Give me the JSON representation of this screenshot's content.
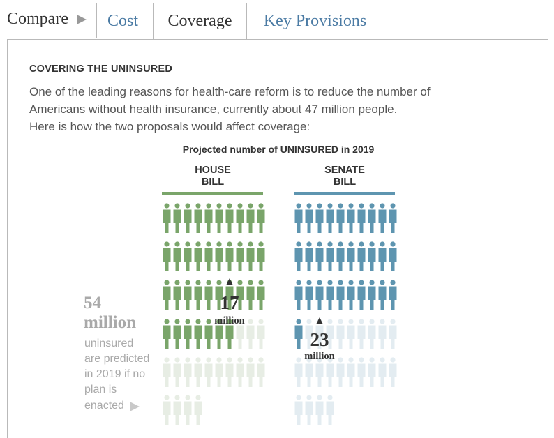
{
  "tabs": {
    "compare_label": "Compare",
    "items": [
      {
        "label": "Cost"
      },
      {
        "label": "Coverage"
      },
      {
        "label": "Key Provisions"
      }
    ],
    "active": "Coverage"
  },
  "section": {
    "heading": "COVERING THE UNINSURED",
    "intro_lines": [
      "One of the leading reasons for health-care reform is to reduce the number of",
      "Americans without health insurance, currently about 47 million people.",
      "Here is how the two proposals would affect coverage:"
    ]
  },
  "chart_data": {
    "type": "pictograph",
    "title": "Projected number of UNINSURED in 2019",
    "unit": "million",
    "baseline": {
      "value": 54,
      "value_label": "54",
      "unit_label": "million",
      "caption_lines": [
        "uninsured",
        "are predicted",
        "in 2019 if no",
        "plan is",
        "enacted"
      ]
    },
    "series": [
      {
        "name": "HOUSE BILL",
        "name_lines": [
          "HOUSE",
          "BILL"
        ],
        "covered": 17,
        "covered_label": "17",
        "covered_unit": "million",
        "uninsured": 37,
        "color": "#7aa56a",
        "faded_color": "#e7ede4"
      },
      {
        "name": "SENATE BILL",
        "name_lines": [
          "SENATE",
          "BILL"
        ],
        "covered": 23,
        "covered_label": "23",
        "covered_unit": "million",
        "uninsured": 31,
        "color": "#5e95b0",
        "faded_color": "#e3ecf1"
      }
    ],
    "per_row": 10
  },
  "colors": {
    "tab_link": "#4b7ba4",
    "baseline_text": "#a9a9a9",
    "label_dark": "#333333"
  }
}
